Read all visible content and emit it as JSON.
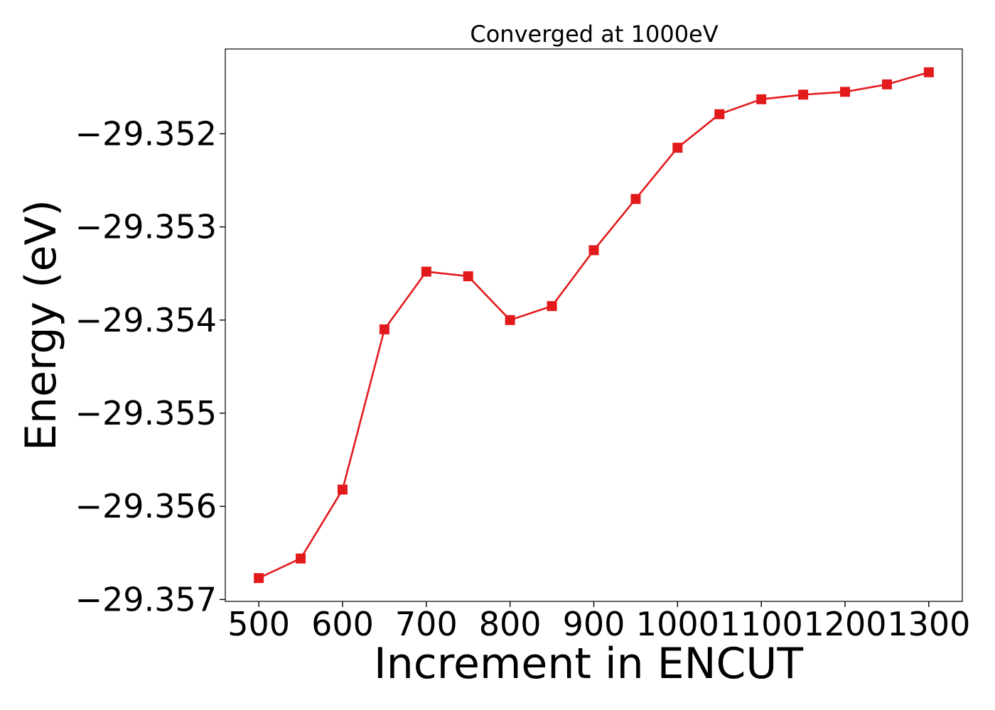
{
  "chart_data": {
    "type": "line",
    "title": "Converged at 1000eV",
    "xlabel": "Increment in ENCUT",
    "ylabel": "Energy (eV)",
    "x": [
      500,
      550,
      600,
      650,
      700,
      750,
      800,
      850,
      900,
      950,
      1000,
      1050,
      1100,
      1150,
      1200,
      1250,
      1300
    ],
    "series": [
      {
        "name": "",
        "color": "#e31a1c",
        "marker": "square",
        "values": [
          -29.35677,
          -29.35656,
          -29.35582,
          -29.3541,
          -29.35348,
          -29.35353,
          -29.354,
          -29.35385,
          -29.35325,
          -29.3527,
          -29.35215,
          -29.35179,
          -29.35163,
          -29.35158,
          -29.35155,
          -29.35147,
          -29.35134
        ]
      }
    ],
    "xlim": [
      460,
      1340
    ],
    "ylim": [
      -29.35702,
      -29.35109
    ],
    "xticks": [
      500,
      600,
      700,
      800,
      900,
      1000,
      1100,
      1200,
      1300
    ],
    "xtick_labels": [
      "500",
      "600",
      "700",
      "800",
      "900",
      "1000",
      "1100",
      "1200",
      "1300"
    ],
    "yticks": [
      -29.357,
      -29.356,
      -29.355,
      -29.354,
      -29.353,
      -29.352
    ],
    "ytick_labels": [
      "−29.357",
      "−29.356",
      "−29.355",
      "−29.354",
      "−29.353",
      "−29.352"
    ],
    "grid": false,
    "legend": "none"
  }
}
